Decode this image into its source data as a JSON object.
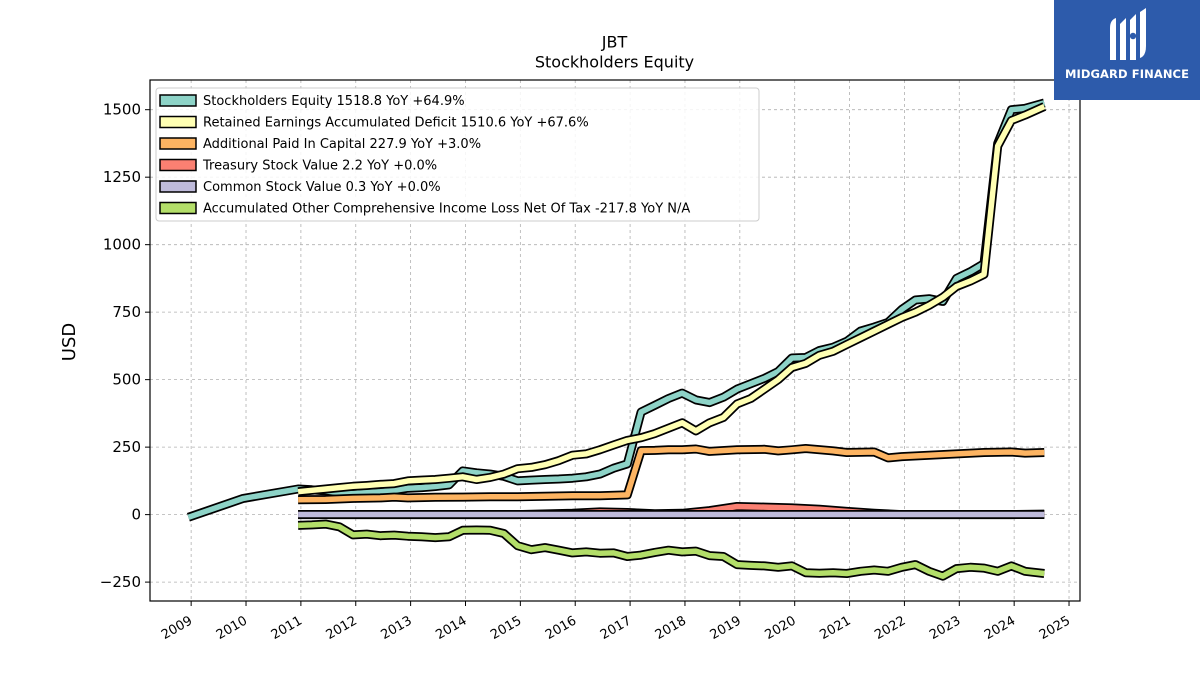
{
  "chart_data": {
    "type": "line",
    "title": "JBT",
    "subtitle": "Stockholders  Equity",
    "ylabel": "USD",
    "xlabel": "",
    "xlim": [
      2008.25,
      2025.2
    ],
    "ylim": [
      -320,
      1610
    ],
    "x_ticks": [
      2009,
      2010,
      2011,
      2012,
      2013,
      2014,
      2015,
      2016,
      2017,
      2018,
      2019,
      2020,
      2021,
      2022,
      2023,
      2024,
      2025
    ],
    "x_tick_labels": [
      "2009",
      "2010",
      "2011",
      "2012",
      "2013",
      "2014",
      "2015",
      "2016",
      "2017",
      "2018",
      "2019",
      "2020",
      "2021",
      "2022",
      "2023",
      "2024",
      "2025"
    ],
    "y_ticks": [
      -250,
      0,
      250,
      500,
      750,
      1000,
      1250,
      1500
    ],
    "y_tick_labels": [
      "−250",
      "0",
      "250",
      "500",
      "750",
      "1000",
      "1250",
      "1500"
    ],
    "grid": true,
    "legend_position": "top-left",
    "series": [
      {
        "name": "Stockholders Equity",
        "legend_label": "Stockholders Equity  1518.8 YoY +64.9%",
        "color": "#8dd3c7",
        "points": [
          [
            2008.95,
            -10
          ],
          [
            2009.95,
            60
          ],
          [
            2010.95,
            95
          ],
          [
            2011.2,
            92
          ],
          [
            2011.45,
            88
          ],
          [
            2011.7,
            82
          ],
          [
            2011.95,
            78
          ],
          [
            2012.2,
            82
          ],
          [
            2012.45,
            85
          ],
          [
            2012.7,
            90
          ],
          [
            2012.95,
            98
          ],
          [
            2013.2,
            100
          ],
          [
            2013.45,
            104
          ],
          [
            2013.7,
            110
          ],
          [
            2013.95,
            162
          ],
          [
            2014.2,
            155
          ],
          [
            2014.45,
            150
          ],
          [
            2014.7,
            142
          ],
          [
            2014.95,
            125
          ],
          [
            2015.2,
            128
          ],
          [
            2015.45,
            130
          ],
          [
            2015.7,
            132
          ],
          [
            2015.95,
            135
          ],
          [
            2016.2,
            140
          ],
          [
            2016.45,
            150
          ],
          [
            2016.7,
            172
          ],
          [
            2016.95,
            188
          ],
          [
            2017.2,
            380
          ],
          [
            2017.45,
            405
          ],
          [
            2017.7,
            430
          ],
          [
            2017.95,
            450
          ],
          [
            2018.2,
            425
          ],
          [
            2018.45,
            415
          ],
          [
            2018.7,
            435
          ],
          [
            2018.95,
            465
          ],
          [
            2019.2,
            485
          ],
          [
            2019.45,
            505
          ],
          [
            2019.7,
            530
          ],
          [
            2019.95,
            580
          ],
          [
            2020.2,
            582
          ],
          [
            2020.45,
            608
          ],
          [
            2020.7,
            620
          ],
          [
            2020.95,
            642
          ],
          [
            2021.2,
            680
          ],
          [
            2021.45,
            695
          ],
          [
            2021.7,
            712
          ],
          [
            2021.95,
            760
          ],
          [
            2022.2,
            795
          ],
          [
            2022.45,
            800
          ],
          [
            2022.7,
            790
          ],
          [
            2022.95,
            875
          ],
          [
            2023.2,
            900
          ],
          [
            2023.45,
            930
          ],
          [
            2023.7,
            1375
          ],
          [
            2023.95,
            1500
          ],
          [
            2024.2,
            1505
          ],
          [
            2024.55,
            1525
          ]
        ]
      },
      {
        "name": "Retained Earnings Accumulated Deficit",
        "legend_label": "Retained Earnings Accumulated Deficit  1510.6 YoY +67.6%",
        "color": "#ffffb3",
        "points": [
          [
            2010.95,
            85
          ],
          [
            2011.2,
            90
          ],
          [
            2011.45,
            95
          ],
          [
            2011.7,
            100
          ],
          [
            2011.95,
            105
          ],
          [
            2012.2,
            108
          ],
          [
            2012.45,
            112
          ],
          [
            2012.7,
            115
          ],
          [
            2012.95,
            125
          ],
          [
            2013.2,
            128
          ],
          [
            2013.45,
            130
          ],
          [
            2013.7,
            135
          ],
          [
            2013.95,
            140
          ],
          [
            2014.2,
            130
          ],
          [
            2014.45,
            138
          ],
          [
            2014.7,
            150
          ],
          [
            2014.95,
            170
          ],
          [
            2015.2,
            175
          ],
          [
            2015.45,
            185
          ],
          [
            2015.7,
            200
          ],
          [
            2015.95,
            220
          ],
          [
            2016.2,
            225
          ],
          [
            2016.45,
            240
          ],
          [
            2016.7,
            258
          ],
          [
            2016.95,
            275
          ],
          [
            2017.2,
            285
          ],
          [
            2017.45,
            300
          ],
          [
            2017.7,
            320
          ],
          [
            2017.95,
            340
          ],
          [
            2018.2,
            310
          ],
          [
            2018.45,
            340
          ],
          [
            2018.7,
            360
          ],
          [
            2018.95,
            410
          ],
          [
            2019.2,
            430
          ],
          [
            2019.45,
            465
          ],
          [
            2019.7,
            500
          ],
          [
            2019.95,
            545
          ],
          [
            2020.2,
            560
          ],
          [
            2020.45,
            590
          ],
          [
            2020.7,
            605
          ],
          [
            2020.95,
            630
          ],
          [
            2021.2,
            655
          ],
          [
            2021.45,
            680
          ],
          [
            2021.7,
            705
          ],
          [
            2021.95,
            730
          ],
          [
            2022.2,
            750
          ],
          [
            2022.45,
            775
          ],
          [
            2022.7,
            805
          ],
          [
            2022.95,
            845
          ],
          [
            2023.2,
            865
          ],
          [
            2023.45,
            890
          ],
          [
            2023.7,
            1365
          ],
          [
            2023.95,
            1460
          ],
          [
            2024.2,
            1480
          ],
          [
            2024.55,
            1512
          ]
        ]
      },
      {
        "name": "Additional Paid In Capital",
        "legend_label": "Additional Paid In Capital  227.9 YoY +3.0%",
        "color": "#fdb462",
        "points": [
          [
            2010.95,
            55
          ],
          [
            2011.45,
            56
          ],
          [
            2011.95,
            60
          ],
          [
            2012.45,
            62
          ],
          [
            2012.7,
            65
          ],
          [
            2012.95,
            62
          ],
          [
            2013.45,
            64
          ],
          [
            2013.95,
            65
          ],
          [
            2014.45,
            66
          ],
          [
            2014.95,
            66
          ],
          [
            2015.45,
            68
          ],
          [
            2015.95,
            70
          ],
          [
            2016.45,
            70
          ],
          [
            2016.95,
            73
          ],
          [
            2017.2,
            237
          ],
          [
            2017.45,
            238
          ],
          [
            2017.7,
            240
          ],
          [
            2017.95,
            240
          ],
          [
            2018.2,
            243
          ],
          [
            2018.45,
            234
          ],
          [
            2018.95,
            240
          ],
          [
            2019.45,
            242
          ],
          [
            2019.7,
            236
          ],
          [
            2019.95,
            240
          ],
          [
            2020.2,
            245
          ],
          [
            2020.7,
            236
          ],
          [
            2020.95,
            230
          ],
          [
            2021.45,
            232
          ],
          [
            2021.7,
            210
          ],
          [
            2021.95,
            215
          ],
          [
            2022.45,
            220
          ],
          [
            2022.95,
            225
          ],
          [
            2023.45,
            230
          ],
          [
            2023.95,
            232
          ],
          [
            2024.2,
            228
          ],
          [
            2024.55,
            230
          ]
        ]
      },
      {
        "name": "Treasury Stock Value",
        "legend_label": "Treasury Stock Value  2.2 YoY +0.0%",
        "color": "#fb8072",
        "points": [
          [
            2010.95,
            0
          ],
          [
            2011.95,
            0
          ],
          [
            2012.95,
            0
          ],
          [
            2013.95,
            0
          ],
          [
            2014.95,
            0
          ],
          [
            2015.95,
            5
          ],
          [
            2016.45,
            10
          ],
          [
            2016.95,
            8
          ],
          [
            2017.45,
            3
          ],
          [
            2017.95,
            5
          ],
          [
            2018.45,
            15
          ],
          [
            2018.95,
            30
          ],
          [
            2019.45,
            28
          ],
          [
            2019.95,
            25
          ],
          [
            2020.45,
            20
          ],
          [
            2020.95,
            12
          ],
          [
            2021.45,
            5
          ],
          [
            2021.95,
            0
          ],
          [
            2022.45,
            0
          ],
          [
            2022.95,
            0
          ],
          [
            2023.45,
            0
          ],
          [
            2023.95,
            0
          ],
          [
            2024.55,
            2
          ]
        ]
      },
      {
        "name": "Common Stock Value",
        "legend_label": "Common Stock Value  0.3 YoY +0.0%",
        "color": "#bebada",
        "points": [
          [
            2010.95,
            0.3
          ],
          [
            2024.55,
            0.3
          ]
        ]
      },
      {
        "name": "Accumulated Other Comprehensive Income Loss Net Of Tax",
        "legend_label": "Accumulated Other Comprehensive Income Loss Net Of Tax  -217.8 YoY N/A",
        "color": "#b3de69",
        "points": [
          [
            2010.95,
            -40
          ],
          [
            2011.2,
            -38
          ],
          [
            2011.45,
            -35
          ],
          [
            2011.7,
            -45
          ],
          [
            2011.95,
            -75
          ],
          [
            2012.2,
            -72
          ],
          [
            2012.45,
            -78
          ],
          [
            2012.7,
            -76
          ],
          [
            2012.95,
            -80
          ],
          [
            2013.2,
            -82
          ],
          [
            2013.45,
            -85
          ],
          [
            2013.7,
            -82
          ],
          [
            2013.95,
            -58
          ],
          [
            2014.2,
            -57
          ],
          [
            2014.45,
            -58
          ],
          [
            2014.7,
            -70
          ],
          [
            2014.95,
            -115
          ],
          [
            2015.2,
            -130
          ],
          [
            2015.45,
            -122
          ],
          [
            2015.7,
            -132
          ],
          [
            2015.95,
            -142
          ],
          [
            2016.2,
            -138
          ],
          [
            2016.45,
            -143
          ],
          [
            2016.7,
            -142
          ],
          [
            2016.95,
            -155
          ],
          [
            2017.2,
            -150
          ],
          [
            2017.45,
            -140
          ],
          [
            2017.7,
            -132
          ],
          [
            2017.95,
            -138
          ],
          [
            2018.2,
            -135
          ],
          [
            2018.45,
            -152
          ],
          [
            2018.7,
            -155
          ],
          [
            2018.95,
            -185
          ],
          [
            2019.2,
            -188
          ],
          [
            2019.45,
            -190
          ],
          [
            2019.7,
            -195
          ],
          [
            2019.95,
            -190
          ],
          [
            2020.2,
            -215
          ],
          [
            2020.45,
            -217
          ],
          [
            2020.7,
            -215
          ],
          [
            2020.95,
            -218
          ],
          [
            2021.2,
            -210
          ],
          [
            2021.45,
            -205
          ],
          [
            2021.7,
            -210
          ],
          [
            2021.95,
            -195
          ],
          [
            2022.2,
            -185
          ],
          [
            2022.45,
            -210
          ],
          [
            2022.7,
            -228
          ],
          [
            2022.95,
            -200
          ],
          [
            2023.2,
            -195
          ],
          [
            2023.45,
            -198
          ],
          [
            2023.7,
            -210
          ],
          [
            2023.95,
            -190
          ],
          [
            2024.2,
            -210
          ],
          [
            2024.55,
            -218
          ]
        ]
      }
    ]
  },
  "logo": {
    "text": "MIDGARD FINANCE",
    "background": "#2d5bab",
    "text_color": "#ffffff"
  }
}
